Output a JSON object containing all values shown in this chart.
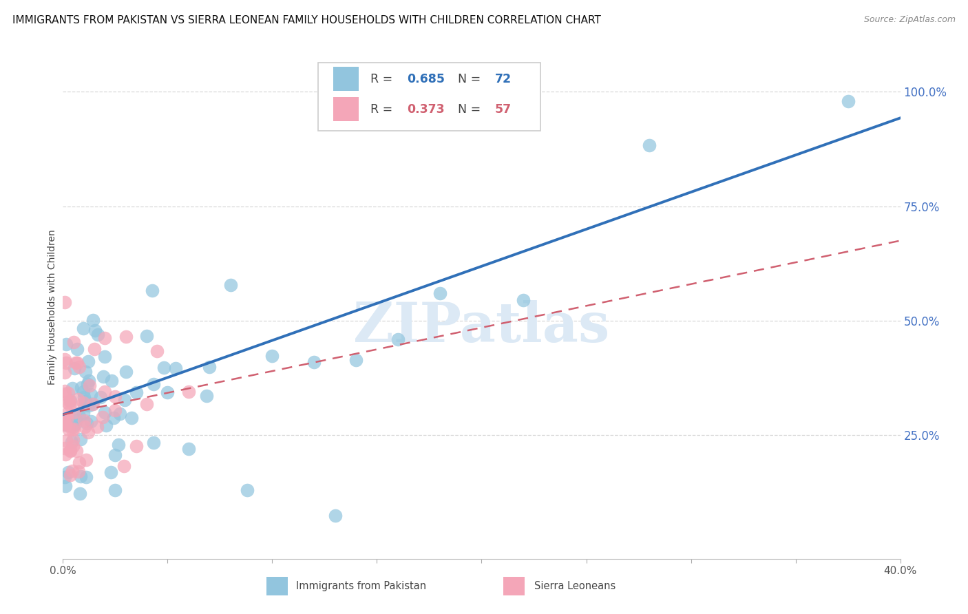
{
  "title": "IMMIGRANTS FROM PAKISTAN VS SIERRA LEONEAN FAMILY HOUSEHOLDS WITH CHILDREN CORRELATION CHART",
  "source": "Source: ZipAtlas.com",
  "ylabel": "Family Households with Children",
  "legend_label1": "Immigrants from Pakistan",
  "legend_label2": "Sierra Leoneans",
  "R1": 0.685,
  "N1": 72,
  "R2": 0.373,
  "N2": 57,
  "color1": "#92c5de",
  "color2": "#f4a6b8",
  "line1_color": "#3070b8",
  "line2_color": "#d06070",
  "background": "#ffffff",
  "watermark": "ZIPatlas",
  "watermark_color": "#dce9f5",
  "xmin": 0.0,
  "xmax": 0.4,
  "ymin": -0.02,
  "ymax": 1.08,
  "yticks": [
    0.25,
    0.5,
    0.75,
    1.0
  ],
  "ytick_labels": [
    "25.0%",
    "50.0%",
    "75.0%",
    "100.0%"
  ],
  "xticks": [
    0.0,
    0.05,
    0.1,
    0.15,
    0.2,
    0.25,
    0.3,
    0.35,
    0.4
  ],
  "xtick_labels": [
    "0.0%",
    "",
    "",
    "",
    "",
    "",
    "",
    "",
    "40.0%"
  ],
  "title_fontsize": 11,
  "axis_label_fontsize": 10,
  "tick_fontsize": 11,
  "right_tick_color": "#4472c4",
  "grid_color": "#d8d8d8",
  "line1_intercept": 0.295,
  "line1_slope": 1.62,
  "line2_intercept": 0.295,
  "line2_slope": 0.95
}
